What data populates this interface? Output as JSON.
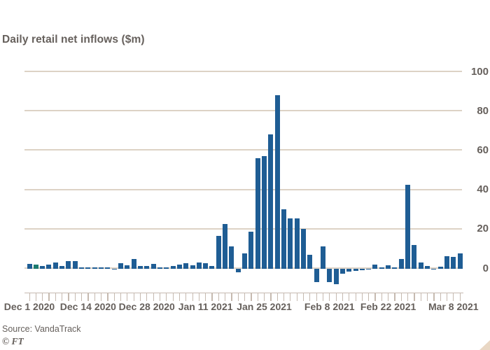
{
  "header": {
    "title": "Daily retail net inflows ($m)"
  },
  "footer": {
    "source": "Source: VandaTrack",
    "credit": "© FT"
  },
  "colors": {
    "background": "#ffffff",
    "bar": "#1f5d94",
    "bar_alt": "#1b7a6e",
    "grid": "#ddd2c5",
    "axis": "#c6bab0",
    "text": "#66605c",
    "corner_triangle": "#e9d7c4"
  },
  "chart_data": {
    "type": "bar",
    "title": "Daily retail net inflows ($m)",
    "xlabel": "",
    "ylabel": "Daily retail net inflows ($m)",
    "unit": "$m",
    "grid": true,
    "ytick_side": "right",
    "ylim": [
      -10,
      100
    ],
    "yticks": [
      0,
      20,
      40,
      60,
      80,
      100
    ],
    "x": [
      "Dec 1",
      "Dec 2",
      "Dec 3",
      "Dec 4",
      "Dec 7",
      "Dec 8",
      "Dec 9",
      "Dec 10",
      "Dec 11",
      "Dec 14",
      "Dec 15",
      "Dec 16",
      "Dec 17",
      "Dec 18",
      "Dec 21",
      "Dec 22",
      "Dec 23",
      "Dec 24",
      "Dec 28",
      "Dec 29",
      "Dec 30",
      "Dec 31",
      "Jan 4",
      "Jan 5",
      "Jan 6",
      "Jan 7",
      "Jan 8",
      "Jan 11",
      "Jan 12",
      "Jan 13",
      "Jan 14",
      "Jan 15",
      "Jan 19",
      "Jan 20",
      "Jan 21",
      "Jan 22",
      "Jan 25",
      "Jan 26",
      "Jan 27",
      "Jan 28",
      "Jan 29",
      "Feb 1",
      "Feb 2",
      "Feb 3",
      "Feb 4",
      "Feb 5",
      "Feb 8",
      "Feb 9",
      "Feb 10",
      "Feb 11",
      "Feb 12",
      "Feb 16",
      "Feb 17",
      "Feb 18",
      "Feb 19",
      "Feb 22",
      "Feb 23",
      "Feb 24",
      "Feb 25",
      "Feb 26",
      "Mar 1",
      "Mar 2",
      "Mar 3",
      "Mar 4",
      "Mar 5",
      "Mar 8",
      "Mar 9"
    ],
    "values": [
      2.0,
      1.8,
      1.2,
      1.9,
      2.9,
      1.1,
      3.6,
      3.7,
      0.5,
      0.3,
      0.4,
      0.2,
      0.3,
      -0.4,
      2.6,
      1.4,
      4.8,
      1.0,
      1.1,
      2.3,
      0.3,
      0.2,
      1.1,
      1.9,
      2.5,
      1.3,
      3.0,
      2.6,
      0.9,
      16.2,
      22.5,
      11.1,
      -1.9,
      7.3,
      18.4,
      56,
      57,
      68,
      88,
      30,
      25.3,
      25.1,
      20.1,
      6.8,
      -6.7,
      11.2,
      -6.7,
      -7.9,
      -2.5,
      -1.5,
      -1.1,
      -0.7,
      -0.5,
      1.9,
      0.5,
      1.4,
      0.3,
      4.8,
      42.5,
      11.8,
      3.0,
      1.2,
      -0.4,
      0.8,
      6.1,
      5.6,
      7.3
    ],
    "alt_color_indices": [
      1
    ],
    "x_axis_labels": [
      {
        "index": 0,
        "label": "Dec 1 2020"
      },
      {
        "index": 9,
        "label": "Dec 14 2020"
      },
      {
        "index": 18,
        "label": "Dec 28 2020"
      },
      {
        "index": 27,
        "label": "Jan 11 2021"
      },
      {
        "index": 36,
        "label": "Jan 25 2021"
      },
      {
        "index": 46,
        "label": "Feb 8 2021"
      },
      {
        "index": 55,
        "label": "Feb 22 2021"
      },
      {
        "index": 65,
        "label": "Mar 8 2021"
      }
    ]
  }
}
